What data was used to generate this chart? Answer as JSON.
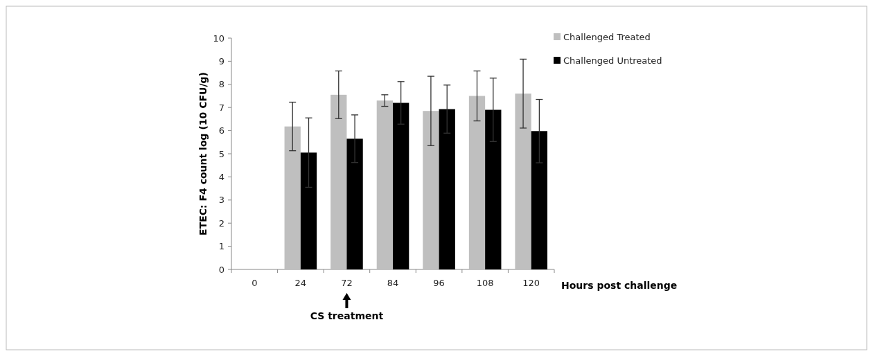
{
  "chart_data": {
    "type": "bar",
    "ylabel": "ETEC: F4 count log (10 CFU/g)",
    "xlabel": "Hours post challenge",
    "categories": [
      "0",
      "24",
      "72",
      "84",
      "96",
      "108",
      "120"
    ],
    "series": [
      {
        "name": "Challenged Treated",
        "color": "#bfbfbf",
        "values": [
          null,
          6.18,
          7.55,
          7.3,
          6.85,
          7.5,
          7.6
        ],
        "errors": [
          null,
          1.05,
          1.03,
          0.25,
          1.5,
          1.08,
          1.49
        ]
      },
      {
        "name": "Challenged Untreated",
        "color": "#000000",
        "values": [
          null,
          5.05,
          5.65,
          7.2,
          6.93,
          6.9,
          5.98
        ],
        "errors": [
          null,
          1.5,
          1.03,
          0.92,
          1.04,
          1.37,
          1.37
        ]
      }
    ],
    "ylim": [
      0,
      10
    ],
    "yticks": [
      0,
      1,
      2,
      3,
      4,
      5,
      6,
      7,
      8,
      9,
      10
    ],
    "legend": "top right",
    "annotations": [
      "CS treatment"
    ]
  }
}
